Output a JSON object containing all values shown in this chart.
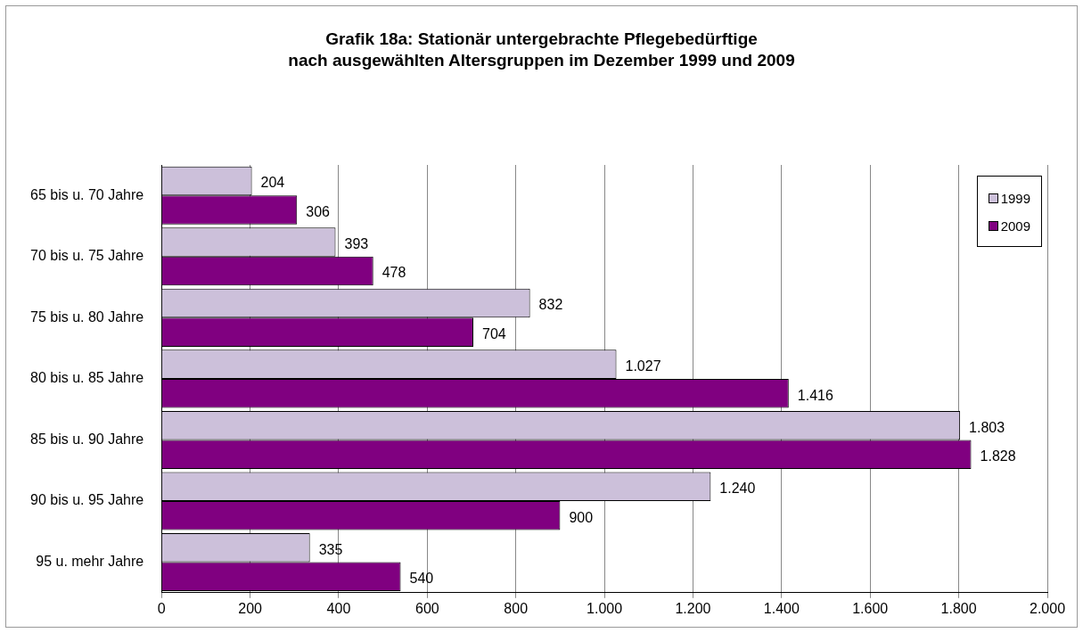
{
  "chart_data": {
    "type": "bar",
    "orientation": "horizontal",
    "title": "Grafik 18a: Stationär untergebrachte Pflegebedürftige\nnach ausgewählten Altersgruppen im Dezember 1999 und 2009",
    "categories": [
      "65 bis u. 70 Jahre",
      "70 bis u. 75 Jahre",
      "75 bis u. 80 Jahre",
      "80 bis u. 85 Jahre",
      "85 bis u. 90 Jahre",
      "90 bis u. 95 Jahre",
      "95 u. mehr Jahre"
    ],
    "series": [
      {
        "name": "1999",
        "color": "#ccc0da",
        "values": [
          204,
          393,
          832,
          1027,
          1803,
          1240,
          335
        ],
        "value_labels": [
          "204",
          "393",
          "832",
          "1.027",
          "1.803",
          "1.240",
          "335"
        ]
      },
      {
        "name": "2009",
        "color": "#800080",
        "values": [
          306,
          478,
          704,
          1416,
          1828,
          900,
          540
        ],
        "value_labels": [
          "306",
          "478",
          "704",
          "1.416",
          "1.828",
          "900",
          "540"
        ]
      }
    ],
    "xlim": [
      0,
      2000
    ],
    "xticks": [
      0,
      200,
      400,
      600,
      800,
      {
        "value": 1000,
        "label": "1.000"
      },
      {
        "value": 1200,
        "label": "1.200"
      },
      {
        "value": 1400,
        "label": "1.400"
      },
      {
        "value": 1600,
        "label": "1.600"
      },
      {
        "value": 1800,
        "label": "1.800"
      },
      {
        "value": 2000,
        "label": "2.000"
      }
    ],
    "grid": "x",
    "legend": "top right"
  }
}
